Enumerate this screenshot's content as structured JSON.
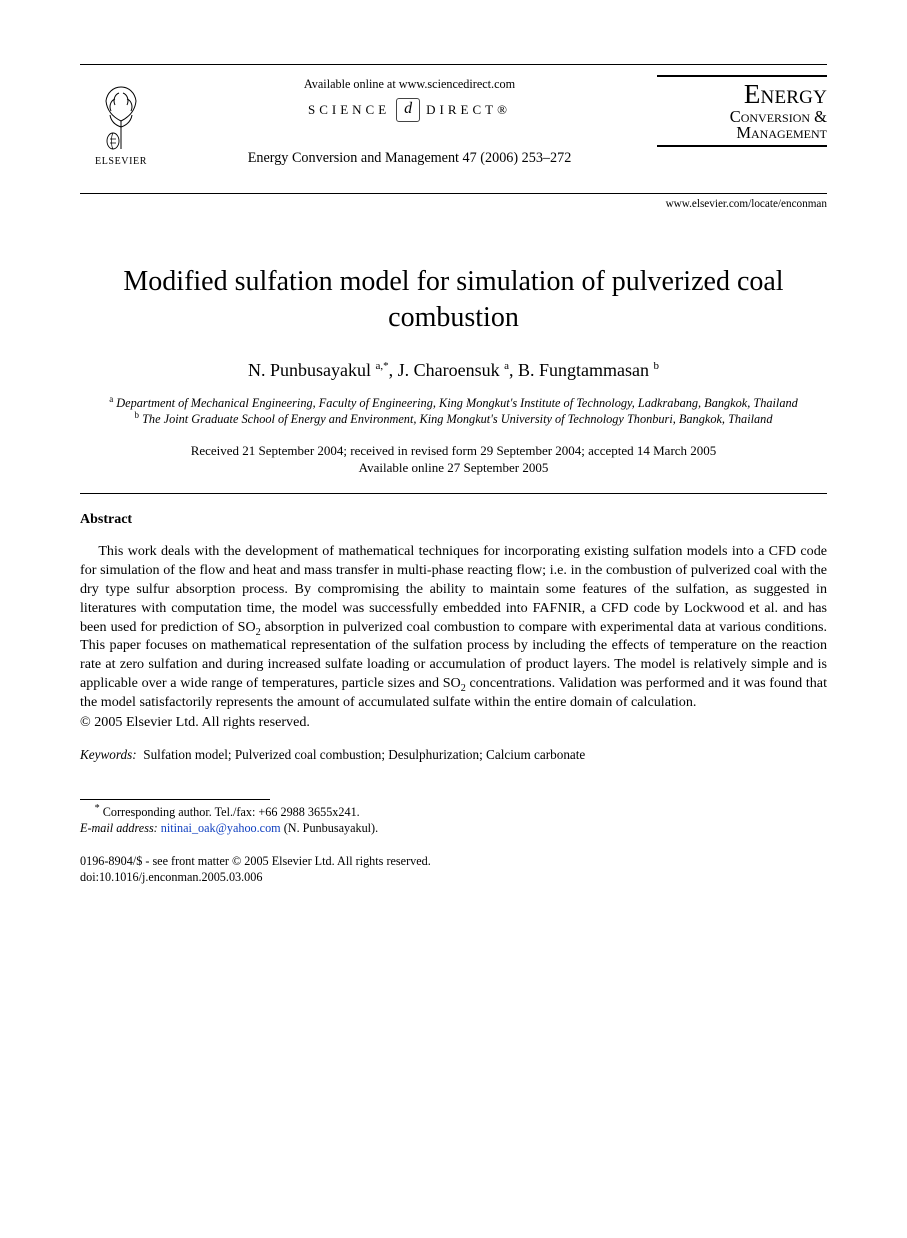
{
  "header": {
    "publisher_name": "ELSEVIER",
    "available_online": "Available online at www.sciencedirect.com",
    "science_direct_left": "SCIENCE",
    "science_direct_right": "DIRECT®",
    "sd_badge_glyph": "d",
    "citation": "Energy Conversion and Management 47 (2006) 253–272",
    "journal_line1": "Energy",
    "journal_line2": "Conversion &",
    "journal_line3": "Management",
    "locate_url": "www.elsevier.com/locate/enconman"
  },
  "title": "Modified sulfation model for simulation of pulverized coal combustion",
  "authors_html": "N. Punbusayakul <sup>a,*</sup>, J. Charoensuk <sup>a</sup>, B. Fungtammasan <sup>b</sup>",
  "affiliations": {
    "a": "Department of Mechanical Engineering, Faculty of Engineering, King Mongkut's Institute of Technology, Ladkrabang, Bangkok, Thailand",
    "b": "The Joint Graduate School of Energy and Environment, King Mongkut's University of Technology Thonburi, Bangkok, Thailand"
  },
  "dates": {
    "line1": "Received 21 September 2004; received in revised form 29 September 2004; accepted 14 March 2005",
    "line2": "Available online 27 September 2005"
  },
  "abstract_heading": "Abstract",
  "abstract_body_html": "This work deals with the development of mathematical techniques for incorporating existing sulfation models into a CFD code for simulation of the flow and heat and mass transfer in multi-phase reacting flow; i.e. in the combustion of pulverized coal with the dry type sulfur absorption process. By compromising the ability to maintain some features of the sulfation, as suggested in literatures with computation time, the model was successfully embedded into FAFNIR, a CFD code by Lockwood et al. and has been used for prediction of SO<sub>2</sub> absorption in pulverized coal combustion to compare with experimental data at various conditions. This paper focuses on mathematical representation of the sulfation process by including the effects of temperature on the reaction rate at zero sulfation and during increased sulfate loading or accumulation of product layers. The model is relatively simple and is applicable over a wide range of temperatures, particle sizes and SO<sub>2</sub> concentrations. Validation was performed and it was found that the model satisfactorily represents the amount of accumulated sulfate within the entire domain of calculation.",
  "copyright": "© 2005 Elsevier Ltd. All rights reserved.",
  "keywords_label": "Keywords:",
  "keywords_text": "Sulfation model; Pulverized coal combustion; Desulphurization; Calcium carbonate",
  "footnote": {
    "marker": "*",
    "corresponding": "Corresponding author. Tel./fax: +66 2988 3655x241.",
    "email_label": "E-mail address:",
    "email": "nitinai_oak@yahoo.com",
    "email_tail": " (N. Punbusayakul)."
  },
  "bottom": {
    "front_matter": "0196-8904/$ - see front matter © 2005 Elsevier Ltd. All rights reserved.",
    "doi": "doi:10.1016/j.enconman.2005.03.006"
  },
  "colors": {
    "text": "#000000",
    "link": "#1040c0",
    "background": "#ffffff"
  },
  "typography": {
    "title_fontsize_pt": 21,
    "authors_fontsize_pt": 13.5,
    "body_fontsize_pt": 10.6,
    "affil_fontsize_pt": 9.3,
    "footnote_fontsize_pt": 9.2,
    "font_family": "Times New Roman"
  }
}
